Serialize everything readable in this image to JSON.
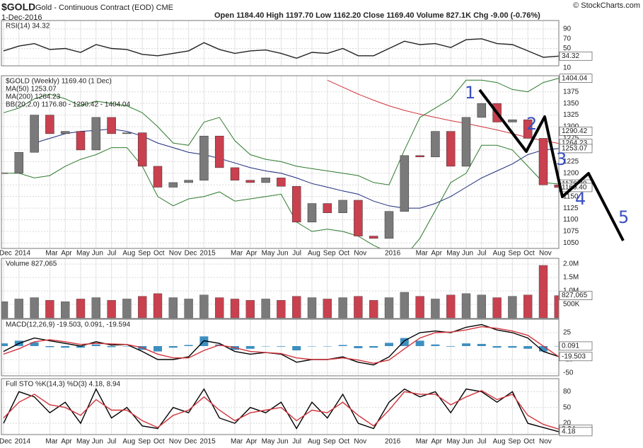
{
  "header": {
    "symbol": "$GOLD",
    "name": "Gold - Continuous Contract (EOD) CME",
    "date": "1-Dec-2016",
    "quote": "Open 1184.40 High 1197.70 Low 1162.20 Close 1169.40 Volume 827.1K Chg -9.00 (-0.76%)",
    "credit": "© StockCharts.com"
  },
  "annotations": [
    "1",
    "2",
    "3",
    "4",
    "5"
  ],
  "chart_data": [
    {
      "type": "line",
      "title": "RSI(14) 34.32",
      "ylim": [
        10,
        90
      ],
      "yticks": [
        90,
        70,
        50,
        30,
        10
      ],
      "grid": true,
      "x": [
        0,
        1,
        2,
        3,
        4,
        5,
        6,
        7,
        8,
        9,
        10,
        11,
        12,
        13,
        14,
        15,
        16,
        17,
        18,
        19,
        20,
        21,
        22,
        23,
        24,
        25,
        26,
        27,
        28,
        29,
        30,
        31,
        32,
        33,
        34,
        35,
        36
      ],
      "series": [
        {
          "color": "#222222",
          "values": [
            45,
            55,
            60,
            48,
            50,
            42,
            58,
            50,
            48,
            38,
            35,
            40,
            45,
            62,
            48,
            40,
            45,
            47,
            40,
            30,
            42,
            40,
            50,
            35,
            35,
            50,
            65,
            58,
            60,
            52,
            68,
            70,
            60,
            58,
            45,
            32,
            34.32
          ]
        }
      ],
      "tags": [
        34.32
      ]
    },
    {
      "type": "candlestick",
      "title": "$GOLD (Weekly) 1169.40 (1 Dec)",
      "ylim": [
        1040,
        1405
      ],
      "yticks": [
        1050,
        1075,
        1100,
        1125,
        1150,
        1175,
        1200,
        1225,
        1250,
        1275,
        1300,
        1325,
        1350,
        1375
      ],
      "grid": true,
      "x": [
        0,
        1,
        2,
        3,
        4,
        5,
        6,
        7,
        8,
        9,
        10,
        11,
        12,
        13,
        14,
        15,
        16,
        17,
        18,
        19,
        20,
        21,
        22,
        23,
        24,
        25,
        26,
        27,
        28,
        29,
        30,
        31,
        32,
        33,
        34,
        35,
        36
      ],
      "closes": [
        1200,
        1245,
        1325,
        1285,
        1290,
        1250,
        1320,
        1285,
        1287,
        1215,
        1170,
        1180,
        1185,
        1280,
        1212,
        1185,
        1180,
        1190,
        1172,
        1095,
        1135,
        1115,
        1142,
        1065,
        1060,
        1118,
        1238,
        1235,
        1290,
        1215,
        1320,
        1350,
        1310,
        1315,
        1275,
        1175,
        1169.4
      ],
      "up_color": "#7a7a7a",
      "down_color": "#c9404f",
      "series": [
        {
          "name": "MA(50) 1253.07",
          "color": "#1c2a7a",
          "values": [
            null,
            null,
            1265,
            1275,
            1285,
            1290,
            1292,
            1295,
            1290,
            1280,
            1265,
            1255,
            1245,
            1240,
            1232,
            1222,
            1212,
            1205,
            1200,
            1190,
            1178,
            1170,
            1162,
            1155,
            1140,
            1130,
            1125,
            1125,
            1135,
            1150,
            1170,
            1190,
            1205,
            1220,
            1240,
            1250,
            1253.07
          ]
        },
        {
          "name": "MA(200) 1264.23",
          "color": "#d0343c",
          "values": [
            null,
            null,
            null,
            null,
            null,
            null,
            null,
            null,
            null,
            null,
            null,
            null,
            null,
            null,
            null,
            null,
            null,
            null,
            null,
            null,
            null,
            1400,
            1385,
            1370,
            1357,
            1345,
            1335,
            1327,
            1320,
            1313,
            1307,
            1300,
            1293,
            1285,
            1277,
            1270,
            1264.23
          ]
        },
        {
          "name": "BB(20,2.0) 1176.80 - 1290.42 - 1404.04",
          "color": "#2d7a2d",
          "upper": [
            1330,
            1340,
            1360,
            1370,
            1360,
            1345,
            1355,
            1350,
            1345,
            1330,
            1300,
            1265,
            1260,
            1310,
            1320,
            1270,
            1240,
            1230,
            1225,
            1215,
            1210,
            1205,
            1200,
            1195,
            1180,
            1175,
            1250,
            1320,
            1340,
            1360,
            1400,
            1400,
            1395,
            1380,
            1375,
            1395,
            1404.04
          ],
          "lower": [
            1200,
            1200,
            1190,
            1195,
            1215,
            1230,
            1240,
            1255,
            1255,
            1215,
            1150,
            1130,
            1145,
            1150,
            1160,
            1140,
            1145,
            1150,
            1155,
            1095,
            1075,
            1080,
            1075,
            1065,
            1045,
            1030,
            1020,
            1060,
            1120,
            1180,
            1200,
            1260,
            1260,
            1250,
            1215,
            1180,
            1176.8
          ]
        }
      ],
      "tags": [
        1404.04,
        1290.42,
        1264.23,
        1253.07,
        {
          "value": 1176.8,
          "label": "1176.80"
        },
        {
          "value": 1169.4,
          "label": "1169.40"
        }
      ],
      "xticks": [
        {
          "value": 0,
          "label": "Dec"
        },
        {
          "value": 1,
          "label": "2014"
        },
        {
          "value": 3,
          "label": "Mar"
        },
        {
          "value": 4,
          "label": "Apr"
        },
        {
          "value": 5,
          "label": "May"
        },
        {
          "value": 6,
          "label": "Jun"
        },
        {
          "value": 7,
          "label": "Jul"
        },
        {
          "value": 8,
          "label": "Aug"
        },
        {
          "value": 9,
          "label": "Sep"
        },
        {
          "value": 10,
          "label": "Oct"
        },
        {
          "value": 11,
          "label": "Nov"
        },
        {
          "value": 12,
          "label": "Dec"
        },
        {
          "value": 13,
          "label": "2015"
        },
        {
          "value": 15,
          "label": "Mar"
        },
        {
          "value": 16,
          "label": "Apr"
        },
        {
          "value": 17,
          "label": "May"
        },
        {
          "value": 18,
          "label": "Jun"
        },
        {
          "value": 19,
          "label": "Jul"
        },
        {
          "value": 20,
          "label": "Aug"
        },
        {
          "value": 21,
          "label": "Sep"
        },
        {
          "value": 22,
          "label": "Oct"
        },
        {
          "value": 23,
          "label": "Nov"
        },
        {
          "value": 25,
          "label": "2016"
        },
        {
          "value": 27,
          "label": "Mar"
        },
        {
          "value": 28,
          "label": "Apr"
        },
        {
          "value": 29,
          "label": "May"
        },
        {
          "value": 30,
          "label": "Jun"
        },
        {
          "value": 31,
          "label": "Jul"
        },
        {
          "value": 32,
          "label": "Aug"
        },
        {
          "value": 33,
          "label": "Sep"
        },
        {
          "value": 34,
          "label": "Oct"
        },
        {
          "value": 35,
          "label": "Nov"
        }
      ]
    },
    {
      "type": "bar",
      "title": "Volume 827,065",
      "ylim": [
        0,
        2160000
      ],
      "yticks": [
        {
          "value": 500000,
          "label": "500K"
        },
        {
          "value": 1000000,
          "label": "1.0M"
        },
        {
          "value": 1500000,
          "label": "1.5M"
        },
        {
          "value": 2000000,
          "label": "2.0M"
        }
      ],
      "grid": true,
      "x": [
        0,
        1,
        2,
        3,
        4,
        5,
        6,
        7,
        8,
        9,
        10,
        11,
        12,
        13,
        14,
        15,
        16,
        17,
        18,
        19,
        20,
        21,
        22,
        23,
        24,
        25,
        26,
        27,
        28,
        29,
        30,
        31,
        32,
        33,
        34,
        35,
        36
      ],
      "values": [
        600000,
        700000,
        750000,
        650000,
        600000,
        700000,
        750000,
        650000,
        700000,
        800000,
        900000,
        750000,
        700000,
        850000,
        750000,
        700000,
        650000,
        700000,
        650000,
        800000,
        750000,
        700000,
        750000,
        800000,
        650000,
        750000,
        950000,
        800000,
        700000,
        850000,
        900000,
        850000,
        750000,
        800000,
        850000,
        1950000,
        827065
      ],
      "up_color": "#7a7a7a",
      "down_color": "#c9404f",
      "tags": [
        {
          "value": 827065,
          "label": "827,065"
        }
      ]
    },
    {
      "type": "line",
      "title": "MACD(12,26,9) -19.503, 0.091, -19.594",
      "ylim": [
        -54,
        50
      ],
      "yticks": [
        25,
        -25,
        -50
      ],
      "grid": true,
      "x": [
        0,
        1,
        2,
        3,
        4,
        5,
        6,
        7,
        8,
        9,
        10,
        11,
        12,
        13,
        14,
        15,
        16,
        17,
        18,
        19,
        20,
        21,
        22,
        23,
        24,
        25,
        26,
        27,
        28,
        29,
        30,
        31,
        32,
        33,
        34,
        35,
        36
      ],
      "series": [
        {
          "style": "histogram",
          "color": "#3d8fc0",
          "values": [
            5,
            10,
            7,
            -2,
            -3,
            -3,
            3,
            -2,
            0,
            -7,
            -10,
            -3,
            2,
            18,
            3,
            -7,
            -5,
            0,
            -1,
            -8,
            0,
            0,
            2,
            -4,
            -3,
            6,
            15,
            10,
            3,
            -1,
            5,
            4,
            -3,
            -3,
            -5,
            -10,
            0.091
          ]
        },
        {
          "color": "#000000",
          "values": [
            -10,
            5,
            15,
            10,
            5,
            0,
            8,
            2,
            3,
            -10,
            -25,
            -25,
            -20,
            10,
            5,
            -10,
            -15,
            -12,
            -15,
            -30,
            -25,
            -25,
            -20,
            -30,
            -35,
            -20,
            10,
            25,
            28,
            25,
            35,
            40,
            30,
            25,
            15,
            -10,
            -19.503
          ]
        },
        {
          "color": "#d0343c",
          "values": [
            -15,
            -5,
            8,
            12,
            8,
            3,
            5,
            4,
            3,
            -3,
            -15,
            -22,
            -22,
            -8,
            2,
            -3,
            -10,
            -12,
            -14,
            -22,
            -25,
            -25,
            -22,
            -26,
            -32,
            -26,
            -5,
            15,
            25,
            26,
            30,
            36,
            33,
            28,
            20,
            0,
            -19.594
          ]
        }
      ],
      "tags": [
        0.091,
        -19.503
      ]
    },
    {
      "type": "line",
      "title": "Full STO %K(14,3) %D(3) 4.18, 8.94",
      "ylim": [
        0,
        102
      ],
      "yticks": [
        80,
        50,
        20
      ],
      "grid": true,
      "x": [
        0,
        1,
        2,
        3,
        4,
        5,
        6,
        7,
        8,
        9,
        10,
        11,
        12,
        13,
        14,
        15,
        16,
        17,
        18,
        19,
        20,
        21,
        22,
        23,
        24,
        25,
        26,
        27,
        28,
        29,
        30,
        31,
        32,
        33,
        34,
        35,
        36
      ],
      "series": [
        {
          "color": "#000000",
          "values": [
            20,
            80,
            70,
            40,
            60,
            20,
            85,
            30,
            50,
            15,
            10,
            50,
            40,
            85,
            30,
            20,
            50,
            40,
            60,
            10,
            60,
            30,
            75,
            20,
            10,
            60,
            85,
            70,
            80,
            40,
            85,
            80,
            60,
            80,
            20,
            12,
            4.18
          ]
        },
        {
          "color": "#d0343c",
          "values": [
            30,
            60,
            75,
            55,
            50,
            35,
            65,
            45,
            45,
            25,
            12,
            35,
            45,
            70,
            45,
            25,
            40,
            45,
            50,
            25,
            45,
            40,
            60,
            35,
            15,
            45,
            80,
            75,
            75,
            55,
            70,
            82,
            65,
            75,
            35,
            18,
            8.94
          ]
        }
      ],
      "tags": [
        8.94,
        4.18
      ],
      "xticks": [
        {
          "value": 0,
          "label": "Dec"
        },
        {
          "value": 1,
          "label": "2014"
        },
        {
          "value": 3,
          "label": "Mar"
        },
        {
          "value": 4,
          "label": "Apr"
        },
        {
          "value": 5,
          "label": "May"
        },
        {
          "value": 6,
          "label": "Jun"
        },
        {
          "value": 7,
          "label": "Jul"
        },
        {
          "value": 8,
          "label": "Aug"
        },
        {
          "value": 9,
          "label": "Sep"
        },
        {
          "value": 10,
          "label": "Oct"
        },
        {
          "value": 11,
          "label": "Nov"
        },
        {
          "value": 12,
          "label": "Dec"
        },
        {
          "value": 13,
          "label": "2015"
        },
        {
          "value": 15,
          "label": "Mar"
        },
        {
          "value": 16,
          "label": "Apr"
        },
        {
          "value": 17,
          "label": "May"
        },
        {
          "value": 18,
          "label": "Jun"
        },
        {
          "value": 19,
          "label": "Jul"
        },
        {
          "value": 20,
          "label": "Aug"
        },
        {
          "value": 21,
          "label": "Sep"
        },
        {
          "value": 22,
          "label": "Oct"
        },
        {
          "value": 23,
          "label": "Nov"
        },
        {
          "value": 25,
          "label": "2016"
        },
        {
          "value": 27,
          "label": "Mar"
        },
        {
          "value": 28,
          "label": "Apr"
        },
        {
          "value": 29,
          "label": "May"
        },
        {
          "value": 30,
          "label": "Jun"
        },
        {
          "value": 31,
          "label": "Jul"
        },
        {
          "value": 32,
          "label": "Aug"
        },
        {
          "value": 33,
          "label": "Sep"
        },
        {
          "value": 34,
          "label": "Oct"
        },
        {
          "value": 35,
          "label": "Nov"
        }
      ]
    }
  ]
}
